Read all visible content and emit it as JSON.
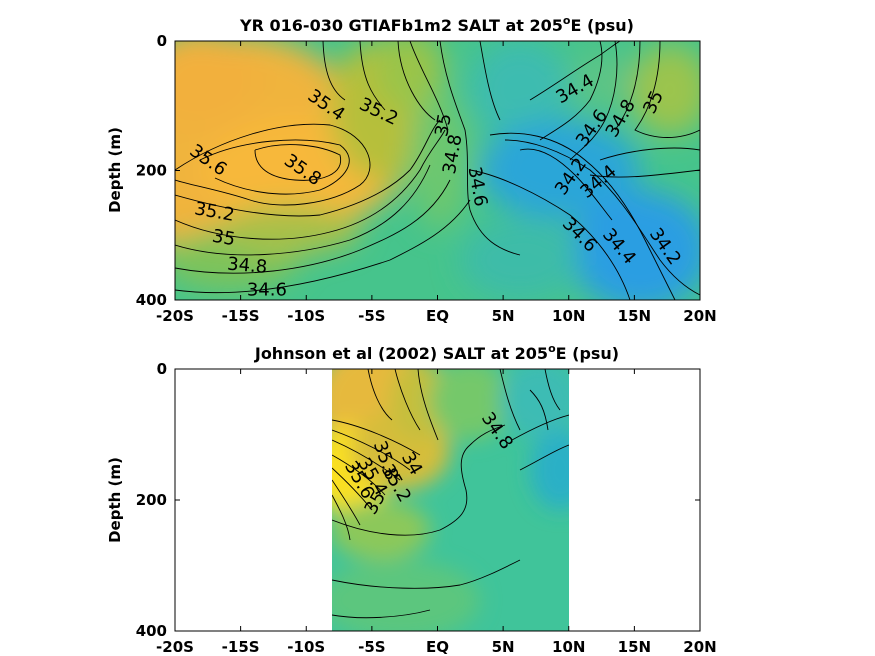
{
  "chart_data": [
    {
      "type": "heatmap",
      "title_main": "YR 016-030 GTIAFb1m2 SALT at 205",
      "title_sup": "o",
      "title_end": "E (psu)",
      "ylabel": "Depth (m)",
      "xlabel": "",
      "xlim": [
        -20,
        20
      ],
      "ylim": [
        0,
        400
      ],
      "y_reversed": true,
      "x_ticks": [
        -20,
        -15,
        -10,
        -5,
        0,
        5,
        10,
        15,
        20
      ],
      "x_tick_labels": [
        "-20S",
        "-15S",
        "-10S",
        "-5S",
        "EQ",
        "5N",
        "10N",
        "15N",
        "20N"
      ],
      "y_ticks": [
        0,
        200,
        400
      ],
      "y_tick_labels": [
        "0",
        "200",
        "400"
      ],
      "data_extent_x": [
        -20,
        20
      ],
      "contour_levels": [
        34.2,
        34.4,
        34.6,
        34.8,
        35,
        35.2,
        35.4,
        35.6,
        35.8
      ],
      "contour_labels": [
        {
          "text": "35.4",
          "x": -8.5,
          "y": 100,
          "angle": 35
        },
        {
          "text": "35.2",
          "x": -4.5,
          "y": 110,
          "angle": 25
        },
        {
          "text": "35",
          "x": 0.5,
          "y": 130,
          "angle": -80
        },
        {
          "text": "34.8",
          "x": 1.2,
          "y": 175,
          "angle": -80
        },
        {
          "text": "34.6",
          "x": 3.0,
          "y": 225,
          "angle": 80
        },
        {
          "text": "35.6",
          "x": -17.5,
          "y": 185,
          "angle": 35
        },
        {
          "text": "35.8",
          "x": -10.3,
          "y": 200,
          "angle": 35
        },
        {
          "text": "35.2",
          "x": -17.0,
          "y": 265,
          "angle": 10
        },
        {
          "text": "35",
          "x": -16.3,
          "y": 305,
          "angle": 10
        },
        {
          "text": "34.8",
          "x": -14.5,
          "y": 348,
          "angle": 5
        },
        {
          "text": "34.6",
          "x": -13.0,
          "y": 385,
          "angle": 0
        },
        {
          "text": "34.4",
          "x": 10.5,
          "y": 75,
          "angle": -30
        },
        {
          "text": "34.6",
          "x": 11.8,
          "y": 135,
          "angle": -55
        },
        {
          "text": "34.8",
          "x": 14.0,
          "y": 120,
          "angle": -60
        },
        {
          "text": "35",
          "x": 16.5,
          "y": 95,
          "angle": -65
        },
        {
          "text": "34.2",
          "x": 10.2,
          "y": 210,
          "angle": -55
        },
        {
          "text": "34.4",
          "x": 12.3,
          "y": 218,
          "angle": -40
        },
        {
          "text": "34.6",
          "x": 10.8,
          "y": 300,
          "angle": 45
        },
        {
          "text": "34.4",
          "x": 13.8,
          "y": 318,
          "angle": 50
        },
        {
          "text": "34.2",
          "x": 17.3,
          "y": 318,
          "angle": 55
        }
      ]
    },
    {
      "type": "heatmap",
      "title_main": "Johnson et al (2002) SALT at 205",
      "title_sup": "o",
      "title_end": "E (psu)",
      "ylabel": "Depth (m)",
      "xlabel": "",
      "xlim": [
        -20,
        20
      ],
      "ylim": [
        0,
        400
      ],
      "y_reversed": true,
      "x_ticks": [
        -20,
        -15,
        -10,
        -5,
        0,
        5,
        10,
        15,
        20
      ],
      "x_tick_labels": [
        "-20S",
        "-15S",
        "-10S",
        "-5S",
        "EQ",
        "5N",
        "10N",
        "15N",
        "20N"
      ],
      "y_ticks": [
        0,
        200,
        400
      ],
      "y_tick_labels": [
        "0",
        "200",
        "400"
      ],
      "data_extent_x": [
        -8,
        10
      ],
      "contour_labels": [
        {
          "text": "34.8",
          "x": 4.5,
          "y": 95,
          "angle": 55
        },
        {
          "text": "35",
          "x": -4.7,
          "y": 205,
          "angle": -60
        },
        {
          "text": "35.2",
          "x": -3.2,
          "y": 175,
          "angle": 60
        },
        {
          "text": "35.4",
          "x": -5.0,
          "y": 165,
          "angle": 60
        },
        {
          "text": "35.6",
          "x": -6.0,
          "y": 170,
          "angle": 60
        },
        {
          "text": "35.8",
          "x": -4.0,
          "y": 140,
          "angle": 70
        },
        {
          "text": "34",
          "x": -2.0,
          "y": 145,
          "angle": 60
        }
      ]
    }
  ]
}
